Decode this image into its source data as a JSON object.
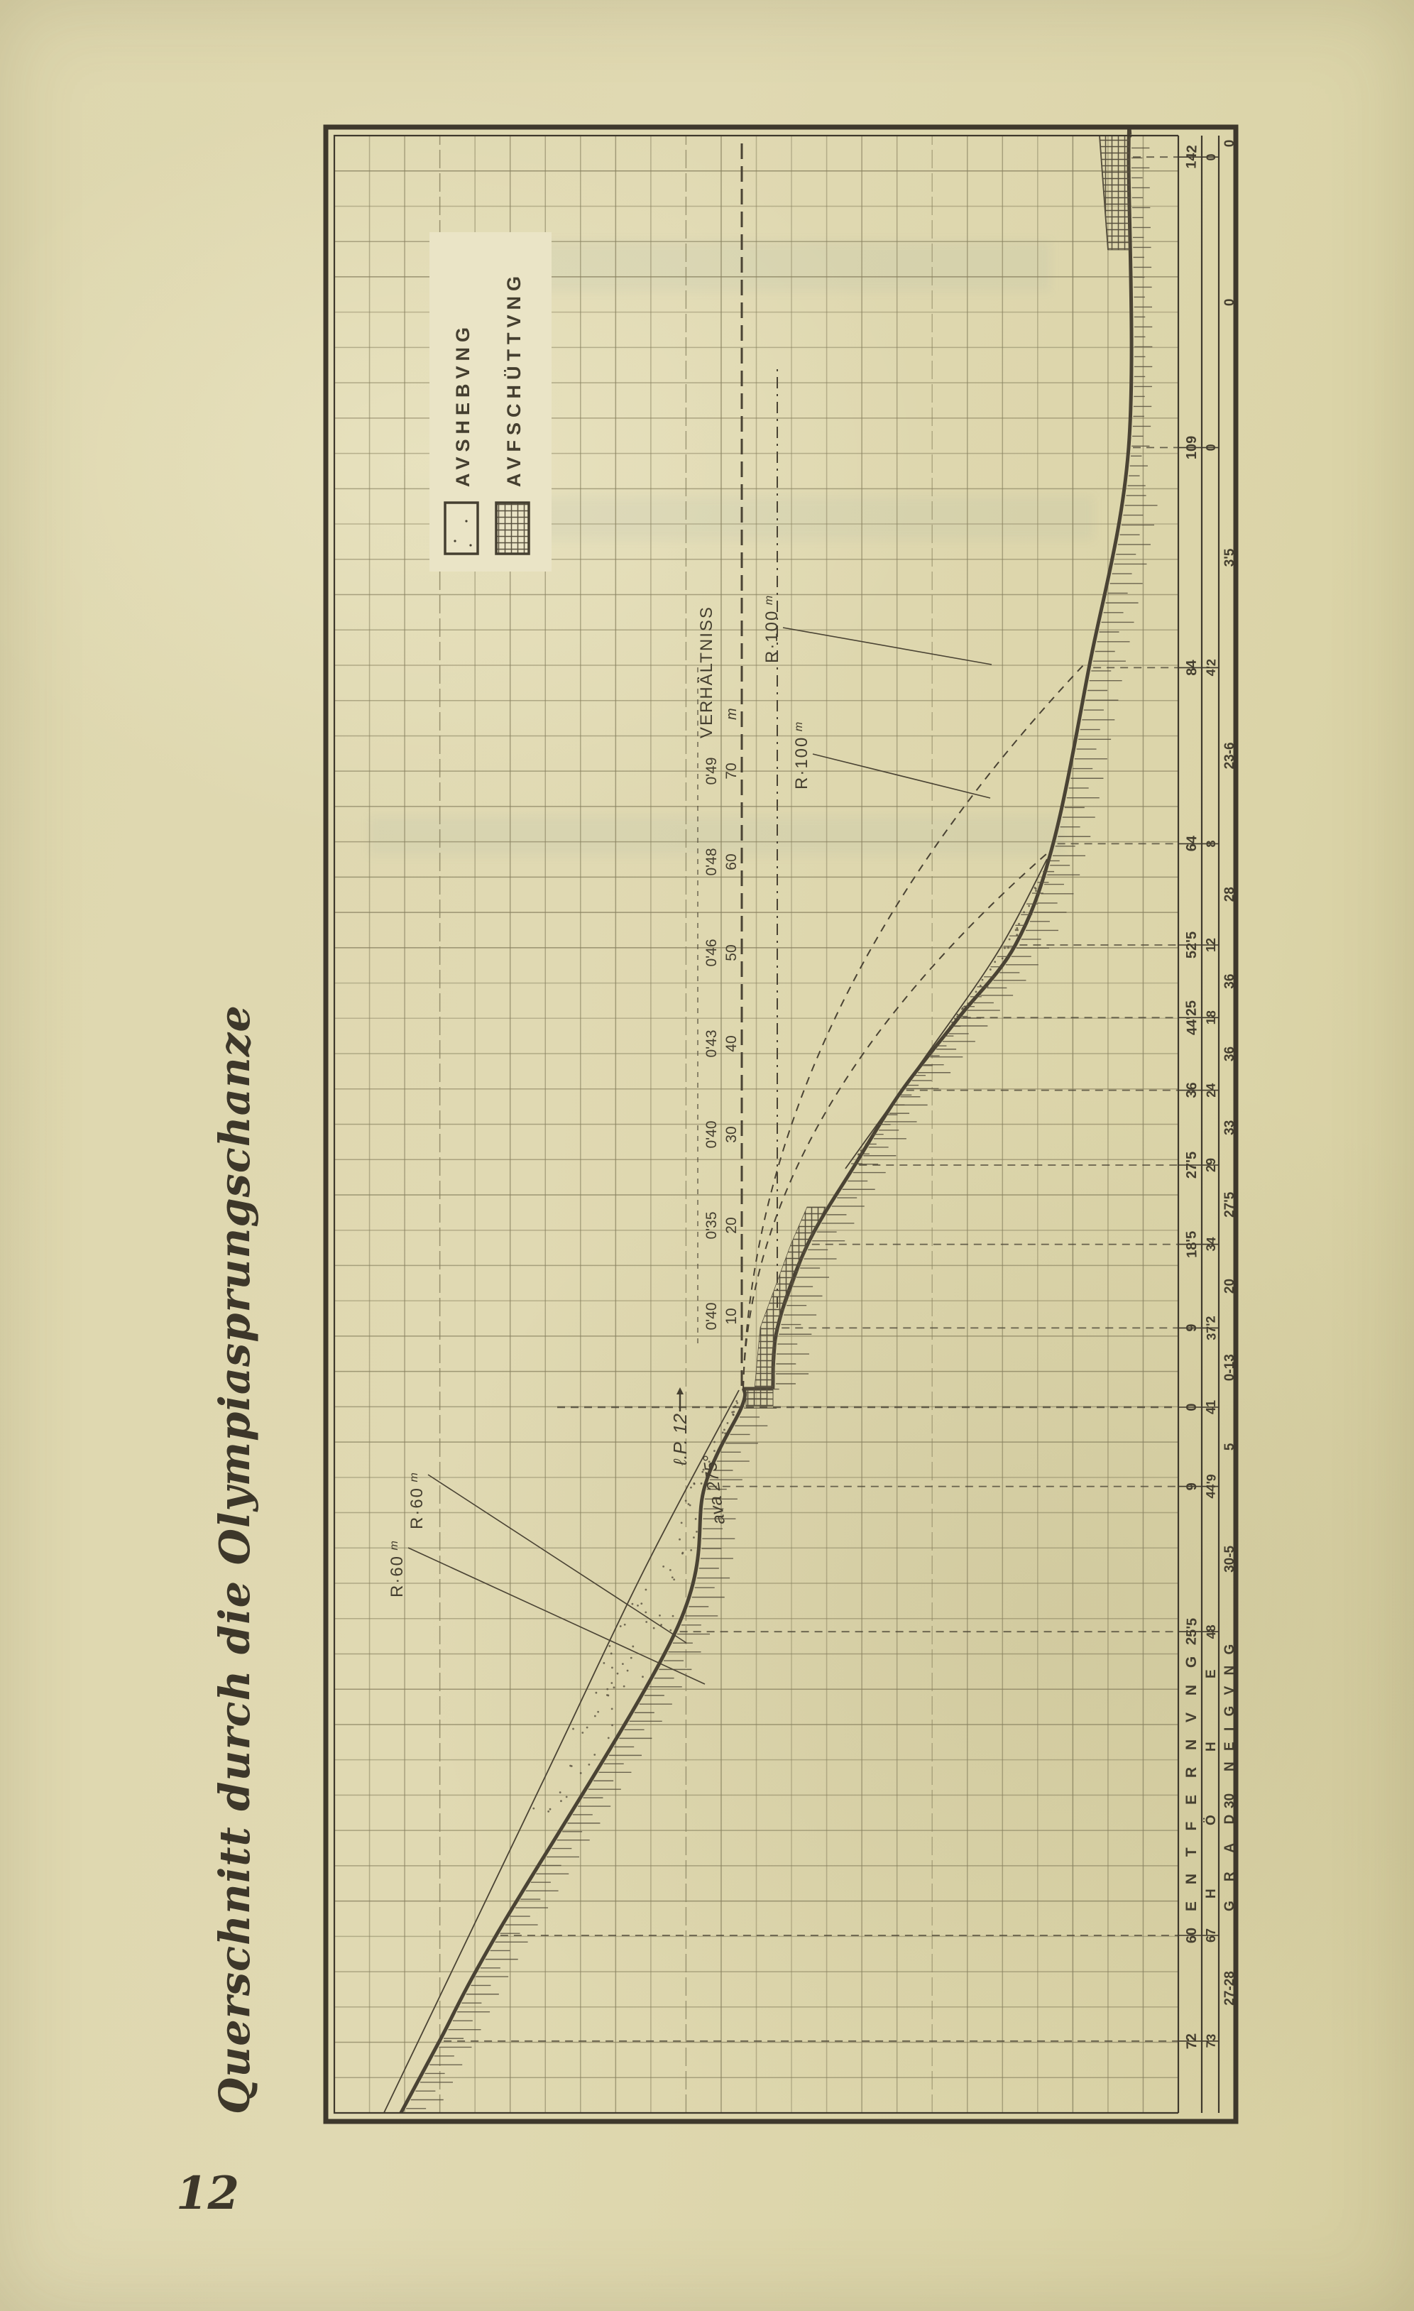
{
  "page": {
    "title": "Querschnitt durch die Olympiasprungschanze",
    "number": "12"
  },
  "colors": {
    "paper": "#ddd6ad",
    "paper_light": "#eae4c6",
    "ink": "#453f30",
    "line": "#4a4334",
    "grid": "#87805f",
    "hatch": "#57503e",
    "frame": "#3e382c"
  },
  "legend": {
    "items": [
      {
        "label": "AVSHEBVNG",
        "swatch": "dotted"
      },
      {
        "label": "AVFSCHÜTTVNG",
        "swatch": "crosshatch"
      }
    ]
  },
  "chart_data": {
    "type": "line",
    "title": "Querschnitt durch die Olympiasprungschanze",
    "x_axis_rows": {
      "row1": "ENTFERNVNG",
      "row2": "HÖHE",
      "row3_a": "GRAD",
      "row3_b": "NEIGVNG"
    },
    "grid": "square graph-paper, ~5 m per cell",
    "stations": [
      {
        "entf": "72",
        "hoehe": "73",
        "d": -72,
        "h": 73
      },
      {
        "entf": "60",
        "hoehe": "67",
        "d": -60,
        "h": 67
      },
      {
        "entf": "25'5",
        "hoehe": "48",
        "d": -25.5,
        "h": 48
      },
      {
        "entf": "9",
        "hoehe": "44'9",
        "d": -9,
        "h": 44.9
      },
      {
        "entf": "0",
        "hoehe": "41",
        "d": 0,
        "h": 41
      },
      {
        "entf": "9",
        "hoehe": "37'2",
        "d": 9,
        "h": 37.2
      },
      {
        "entf": "18'5",
        "hoehe": "34",
        "d": 18.5,
        "h": 34
      },
      {
        "entf": "27'5",
        "hoehe": "29",
        "d": 27.5,
        "h": 29
      },
      {
        "entf": "36",
        "hoehe": "24",
        "d": 36,
        "h": 24
      },
      {
        "entf": "44'25",
        "hoehe": "18",
        "d": 44.25,
        "h": 18
      },
      {
        "entf": "52'5",
        "hoehe": "12",
        "d": 52.5,
        "h": 12
      },
      {
        "entf": "64",
        "hoehe": "8",
        "d": 64,
        "h": 8
      },
      {
        "entf": "84",
        "hoehe": "4'2",
        "d": 84,
        "h": 4.2
      },
      {
        "entf": "109",
        "hoehe": "0",
        "d": 109,
        "h": 0
      },
      {
        "entf": "142",
        "hoehe": "0",
        "d": 142,
        "h": 0
      }
    ],
    "grad_between": [
      "27-28",
      "30",
      "30-5",
      "5",
      "0-13",
      "20",
      "27'5",
      "33",
      "36",
      "36",
      "28",
      "23-6",
      "3'5",
      "0"
    ],
    "grad_end": "0",
    "ratio": {
      "header": "VERHÄLTNISS",
      "unit": "m",
      "pairs": [
        {
          "ratio": "0'40",
          "m": "10",
          "dm": 10
        },
        {
          "ratio": "0'35",
          "m": "20",
          "dm": 20
        },
        {
          "ratio": "0'40",
          "m": "30",
          "dm": 30
        },
        {
          "ratio": "0'43",
          "m": "40",
          "dm": 40
        },
        {
          "ratio": "0'46",
          "m": "50",
          "dm": 50
        },
        {
          "ratio": "0'48",
          "m": "60",
          "dm": 60
        },
        {
          "ratio": "0'49",
          "m": "70",
          "dm": 70
        }
      ]
    },
    "annotations": {
      "r100": "R·100",
      "r60": "R·60",
      "r_unit": "m",
      "lp": "ℓ.P. 12",
      "ava": "ava 275°"
    }
  }
}
